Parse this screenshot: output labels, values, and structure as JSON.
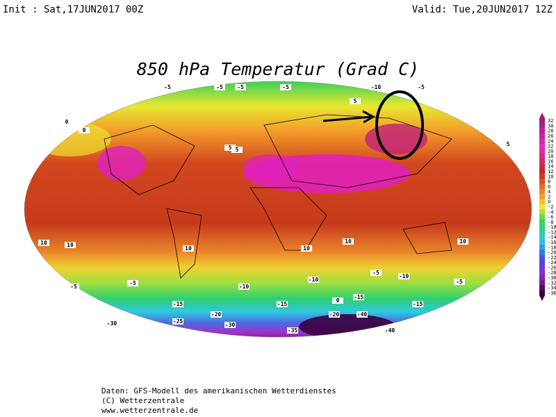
{
  "header": {
    "init": "Init : Sat,17JUN2017 00Z",
    "valid": "Valid: Tue,20JUN2017 12Z"
  },
  "title": "850 hPa Temperatur (Grad C)",
  "colorbar": {
    "ticks": [
      32,
      30,
      28,
      26,
      24,
      22,
      20,
      18,
      16,
      14,
      12,
      10,
      8,
      6,
      4,
      2,
      0,
      -2,
      -4,
      -6,
      -8,
      -10,
      -12,
      -14,
      -16,
      -18,
      -20,
      -22,
      -24,
      -26,
      -28,
      -30,
      -32,
      -34,
      -36
    ]
  },
  "map": {
    "labels": [
      "-5",
      "-5",
      "-5",
      "-5",
      "-10",
      "-5",
      "0",
      "0",
      "5",
      "5",
      "5",
      "5",
      "10",
      "10",
      "10",
      "10",
      "10",
      "10",
      "-5",
      "-5",
      "-10",
      "-10",
      "-10",
      "-15",
      "-15",
      "-15",
      "-20",
      "-20",
      "-25",
      "-30",
      "-30",
      "-35",
      "-40",
      "-40",
      "-15",
      "-5",
      "0",
      "-5"
    ]
  },
  "footer": {
    "source": "Daten: GFS-Modell des amerikanischen Wetterdienstes",
    "copyright": "(C) Wetterzentrale",
    "url": "www.wetterzentrale.de"
  }
}
